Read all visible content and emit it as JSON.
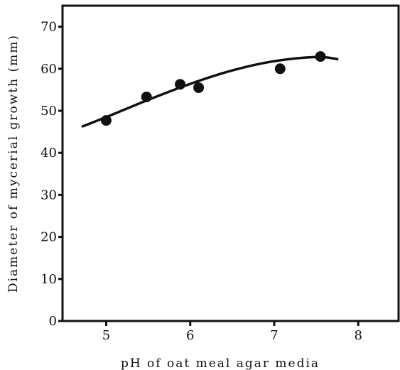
{
  "chart_data": {
    "type": "scatter",
    "title": "",
    "xlabel": "pH of oat meal agar media",
    "ylabel": "Diameter of mycerial growth (mm)",
    "xlim": [
      4.48,
      8.48
    ],
    "ylim": [
      0,
      75
    ],
    "x_ticks": [
      5,
      6,
      7,
      8
    ],
    "y_ticks": [
      0,
      10,
      20,
      30,
      40,
      50,
      60,
      70
    ],
    "x_tick_labels": [
      "5",
      "6",
      "7",
      "8"
    ],
    "y_tick_labels": [
      "0",
      "10",
      "20",
      "30",
      "40",
      "50",
      "60",
      "70"
    ],
    "grid": false,
    "legend": "none",
    "series": [
      {
        "kind": "points",
        "color": "#111111",
        "points": [
          {
            "x": 5.0,
            "y": 47.7
          },
          {
            "x": 5.48,
            "y": 53.3
          },
          {
            "x": 5.88,
            "y": 56.3
          },
          {
            "x": 6.1,
            "y": 55.5
          },
          {
            "x": 7.07,
            "y": 60.0
          },
          {
            "x": 7.55,
            "y": 62.9
          }
        ]
      },
      {
        "kind": "fitted-curve",
        "color": "#111111",
        "points": [
          {
            "x": 4.72,
            "y": 46.3
          },
          {
            "x": 5.0,
            "y": 48.5
          },
          {
            "x": 5.5,
            "y": 52.6
          },
          {
            "x": 6.0,
            "y": 56.4
          },
          {
            "x": 6.5,
            "y": 59.6
          },
          {
            "x": 7.0,
            "y": 61.8
          },
          {
            "x": 7.5,
            "y": 62.8
          },
          {
            "x": 7.75,
            "y": 62.3
          }
        ]
      }
    ]
  }
}
